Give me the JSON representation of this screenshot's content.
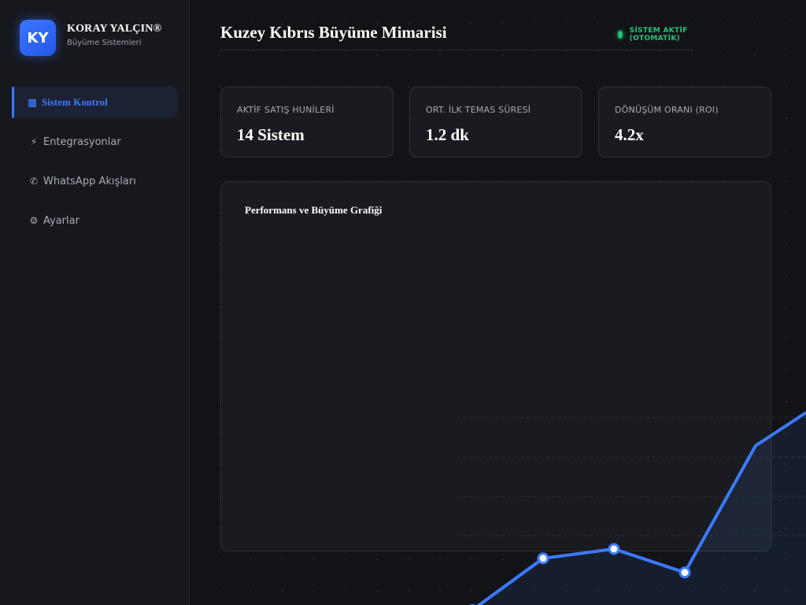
{
  "brand": {
    "initials": "KY",
    "name": "KORAY YALÇIN®",
    "subtitle": "Büyüme Sistemleri"
  },
  "nav": [
    {
      "icon": "bar-chart-icon",
      "glyph": "▥",
      "label": "Sistem Kontrol",
      "active": true
    },
    {
      "icon": "lightning-icon",
      "glyph": "⚡",
      "label": "Entegrasyonlar",
      "active": false
    },
    {
      "icon": "phone-icon",
      "glyph": "✆",
      "label": "WhatsApp Akışları",
      "active": false
    },
    {
      "icon": "gear-icon",
      "glyph": "⚙",
      "label": "Ayarlar",
      "active": false
    }
  ],
  "header": {
    "title": "Kuzey Kıbrıs Büyüme Mimarisi",
    "status": "SİSTEM AKTİF (OTOMATİK)"
  },
  "colors": {
    "accent": "#3b7bff",
    "status": "#1fc77a",
    "background": "#121317"
  },
  "cards": [
    {
      "label": "AKTİF SATIŞ HUNİLERİ",
      "value": "14 Sistem"
    },
    {
      "label": "ORT. İLK TEMAS SÜRESİ",
      "value": "1.2 dk"
    },
    {
      "label": "DÖNÜŞÜM ORANI (ROI)",
      "value": "4.2x"
    }
  ],
  "chart_panel": {
    "title": "Performans ve Büyüme Grafiği"
  },
  "chart_data": {
    "type": "line",
    "title": "",
    "xlabel": "",
    "ylabel": "",
    "grid": true,
    "series": [
      {
        "values": [
          18,
          40,
          44,
          34,
          88
        ]
      }
    ],
    "ylim": [
      0,
      100
    ]
  }
}
